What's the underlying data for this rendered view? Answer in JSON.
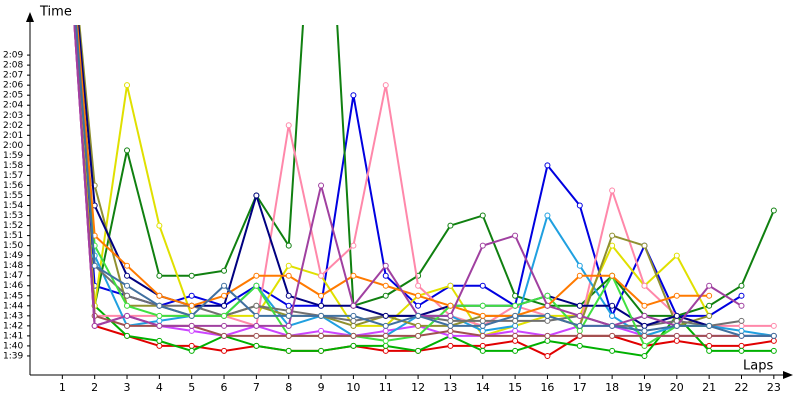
{
  "chart_data": {
    "type": "line",
    "y_label": "Time",
    "x_label": "Laps",
    "x": [
      1,
      2,
      3,
      4,
      5,
      6,
      7,
      8,
      9,
      10,
      11,
      12,
      13,
      14,
      15,
      16,
      17,
      18,
      19,
      20,
      21,
      22,
      23
    ],
    "xlim": [
      0,
      23.5
    ],
    "xticks": [
      1,
      2,
      3,
      4,
      5,
      6,
      7,
      8,
      9,
      10,
      11,
      12,
      13,
      14,
      15,
      16,
      17,
      18,
      19,
      20,
      21,
      22,
      23
    ],
    "ylim": [
      97.1,
      132
    ],
    "yticks": [
      {
        "value": 99,
        "label": "1:39"
      },
      {
        "value": 100,
        "label": "1:40"
      },
      {
        "value": 101,
        "label": "1:41"
      },
      {
        "value": 102,
        "label": "1:42"
      },
      {
        "value": 103,
        "label": "1:43"
      },
      {
        "value": 104,
        "label": "1:44"
      },
      {
        "value": 105,
        "label": "1:45"
      },
      {
        "value": 106,
        "label": "1:46"
      },
      {
        "value": 107,
        "label": "1:47"
      },
      {
        "value": 108,
        "label": "1:48"
      },
      {
        "value": 109,
        "label": "1:49"
      },
      {
        "value": 110,
        "label": "1:50"
      },
      {
        "value": 111,
        "label": "1:51"
      },
      {
        "value": 112,
        "label": "1:52"
      },
      {
        "value": 113,
        "label": "1:53"
      },
      {
        "value": 114,
        "label": "1:54"
      },
      {
        "value": 115,
        "label": "1:55"
      },
      {
        "value": 116,
        "label": "1:56"
      },
      {
        "value": 117,
        "label": "1:57"
      },
      {
        "value": 118,
        "label": "1:58"
      },
      {
        "value": 119,
        "label": "1:59"
      },
      {
        "value": 120,
        "label": "2:00"
      },
      {
        "value": 121,
        "label": "2:01"
      },
      {
        "value": 122,
        "label": "2:02"
      },
      {
        "value": 123,
        "label": "2:03"
      },
      {
        "value": 124,
        "label": "2:04"
      },
      {
        "value": 125,
        "label": "2:05"
      },
      {
        "value": 126,
        "label": "2:06"
      },
      {
        "value": 127,
        "label": "2:07"
      },
      {
        "value": 128,
        "label": "2:08"
      },
      {
        "value": 129,
        "label": "2:09"
      }
    ],
    "series": [
      {
        "color": "#e00000",
        "values": [
          150,
          102,
          101,
          100,
          100,
          99.5,
          100,
          99.5,
          99.5,
          100,
          99.5,
          99.5,
          100,
          100,
          100.5,
          99,
          101,
          101,
          100,
          100.5,
          100,
          100,
          100.5
        ]
      },
      {
        "color": "#00b000",
        "values": [
          150,
          104,
          101,
          100.5,
          99.5,
          101,
          100,
          99.5,
          99.5,
          100,
          100,
          99.5,
          101,
          99.5,
          99.5,
          100.5,
          100,
          99.5,
          99,
          103,
          99.5,
          99.5,
          99.5
        ]
      },
      {
        "color": "#0000e0",
        "values": [
          150,
          106,
          105,
          104,
          105,
          104,
          106,
          104,
          104,
          125,
          107,
          104,
          106,
          106,
          104,
          118,
          114,
          103,
          110,
          103,
          103,
          105,
          null
        ]
      },
      {
        "color": "#108010",
        "values": [
          150,
          104,
          119.5,
          107,
          107,
          107.5,
          115,
          110,
          160,
          104,
          105,
          107,
          112,
          113,
          105,
          104,
          104,
          107,
          103,
          103,
          104,
          106,
          113.5
        ]
      },
      {
        "color": "#e0e000",
        "values": [
          150,
          104,
          126,
          112,
          103,
          103,
          103,
          108,
          107,
          102,
          102,
          105,
          106,
          101,
          102,
          103,
          103,
          110,
          106,
          109,
          103,
          null,
          null
        ]
      },
      {
        "color": "#ff88aa",
        "values": [
          150,
          103,
          103,
          103,
          103,
          103,
          102,
          122,
          107,
          110,
          126,
          106,
          103,
          102,
          104,
          103,
          102,
          115.5,
          106,
          103,
          102,
          102,
          102
        ]
      },
      {
        "color": "#cc44ff",
        "values": [
          150,
          102,
          103,
          102,
          101.5,
          101,
          102,
          101,
          101.5,
          101,
          101.5,
          102,
          101,
          101,
          101.5,
          101,
          102,
          102,
          101,
          101,
          101,
          101,
          101
        ]
      },
      {
        "color": "#20a0e0",
        "values": [
          150,
          109,
          102,
          102.5,
          103,
          103,
          106,
          102,
          103,
          101,
          101,
          103,
          103,
          101.5,
          102,
          113,
          108,
          103,
          101,
          102,
          102,
          101.5,
          101
        ]
      },
      {
        "color": "#909030",
        "values": [
          150,
          116,
          104,
          104,
          103,
          103,
          104,
          103,
          103,
          102,
          103,
          102,
          102,
          103,
          103,
          103,
          102,
          111,
          110,
          102,
          103,
          null,
          null
        ]
      },
      {
        "color": "#707070",
        "values": [
          150,
          108,
          105,
          104,
          104,
          103,
          104,
          103.5,
          103,
          102.5,
          103,
          103,
          102.5,
          102.5,
          102.5,
          102.5,
          103,
          102,
          102,
          102.5,
          102,
          102.5,
          null
        ]
      },
      {
        "color": "#000080",
        "values": [
          150,
          114,
          107,
          105,
          104,
          104,
          115,
          105,
          104,
          104,
          103,
          103,
          104,
          104,
          104,
          105,
          104,
          104,
          102,
          103,
          102,
          null,
          null
        ]
      },
      {
        "color": "#40e040",
        "values": [
          150,
          110,
          104,
          103,
          103,
          103,
          106,
          101,
          101,
          101,
          100.5,
          101,
          104,
          104,
          104,
          105,
          101.5,
          107,
          100,
          102,
          102,
          null,
          null
        ]
      },
      {
        "color": "#ff7a00",
        "values": [
          150,
          111,
          108,
          105,
          104,
          105,
          107,
          107,
          105,
          107,
          106,
          105,
          104,
          103,
          103,
          104,
          107,
          107,
          104,
          105,
          105,
          null,
          null
        ]
      },
      {
        "color": "#a05050",
        "values": [
          150,
          103,
          102,
          102,
          102,
          101,
          101,
          101,
          101,
          101,
          101,
          101,
          101.5,
          101,
          101,
          101,
          101,
          101,
          101,
          101,
          101,
          101,
          101
        ]
      },
      {
        "color": "#a040a0",
        "values": [
          150,
          102,
          103,
          102,
          102,
          102,
          102,
          102,
          116,
          104,
          108,
          103,
          103,
          110,
          111,
          104,
          103,
          102,
          103,
          102,
          106,
          104,
          null
        ]
      },
      {
        "color": "#4070a0",
        "values": [
          150,
          108,
          106,
          104,
          103,
          106,
          103,
          103,
          103,
          103,
          102,
          103,
          102,
          102,
          103,
          103,
          102,
          102,
          101.5,
          102,
          102,
          101,
          101
        ]
      }
    ]
  }
}
